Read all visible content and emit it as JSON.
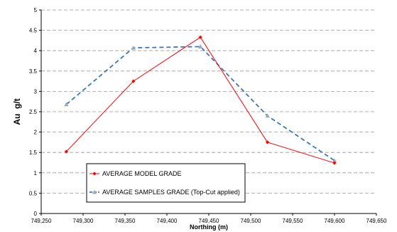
{
  "chart_data": {
    "type": "line",
    "title": "",
    "xlabel": "Northing (m)",
    "ylabel": "Au  g/t",
    "xlim": [
      749250,
      749650
    ],
    "ylim": [
      0,
      5
    ],
    "x_ticks": [
      749250,
      749300,
      749350,
      749400,
      749450,
      749500,
      749550,
      749600,
      749650
    ],
    "x_tick_labels": [
      "749,250",
      "749,300",
      "749,350",
      "749,400",
      "749,450",
      "749,500",
      "749,550",
      "749,600",
      "749,650"
    ],
    "y_ticks": [
      0,
      0.5,
      1,
      1.5,
      2,
      2.5,
      3,
      3.5,
      4,
      4.5,
      5
    ],
    "y_tick_labels": [
      "0",
      "0.5",
      "1",
      "1.5",
      "2",
      "2.5",
      "3",
      "3.5",
      "4",
      "4.5",
      "5"
    ],
    "grid": "horizontal dashed",
    "legend_position": "bottom-left",
    "series": [
      {
        "name": "AVERAGE MODEL GRADE",
        "color": "#ff0000",
        "style": "solid",
        "marker": "diamond",
        "x": [
          749280,
          749360,
          749440,
          749520,
          749600
        ],
        "y": [
          1.52,
          3.25,
          4.33,
          1.75,
          1.24
        ]
      },
      {
        "name": "AVERAGE SAMPLES GRADE (Top-Cut applied)",
        "color": "#3a78b4",
        "marker_color": "#a0a8b4",
        "style": "dashed",
        "marker": "triangle",
        "x": [
          749280,
          749360,
          749440,
          749520,
          749600
        ],
        "y": [
          2.68,
          4.07,
          4.1,
          2.4,
          1.3
        ]
      }
    ]
  }
}
